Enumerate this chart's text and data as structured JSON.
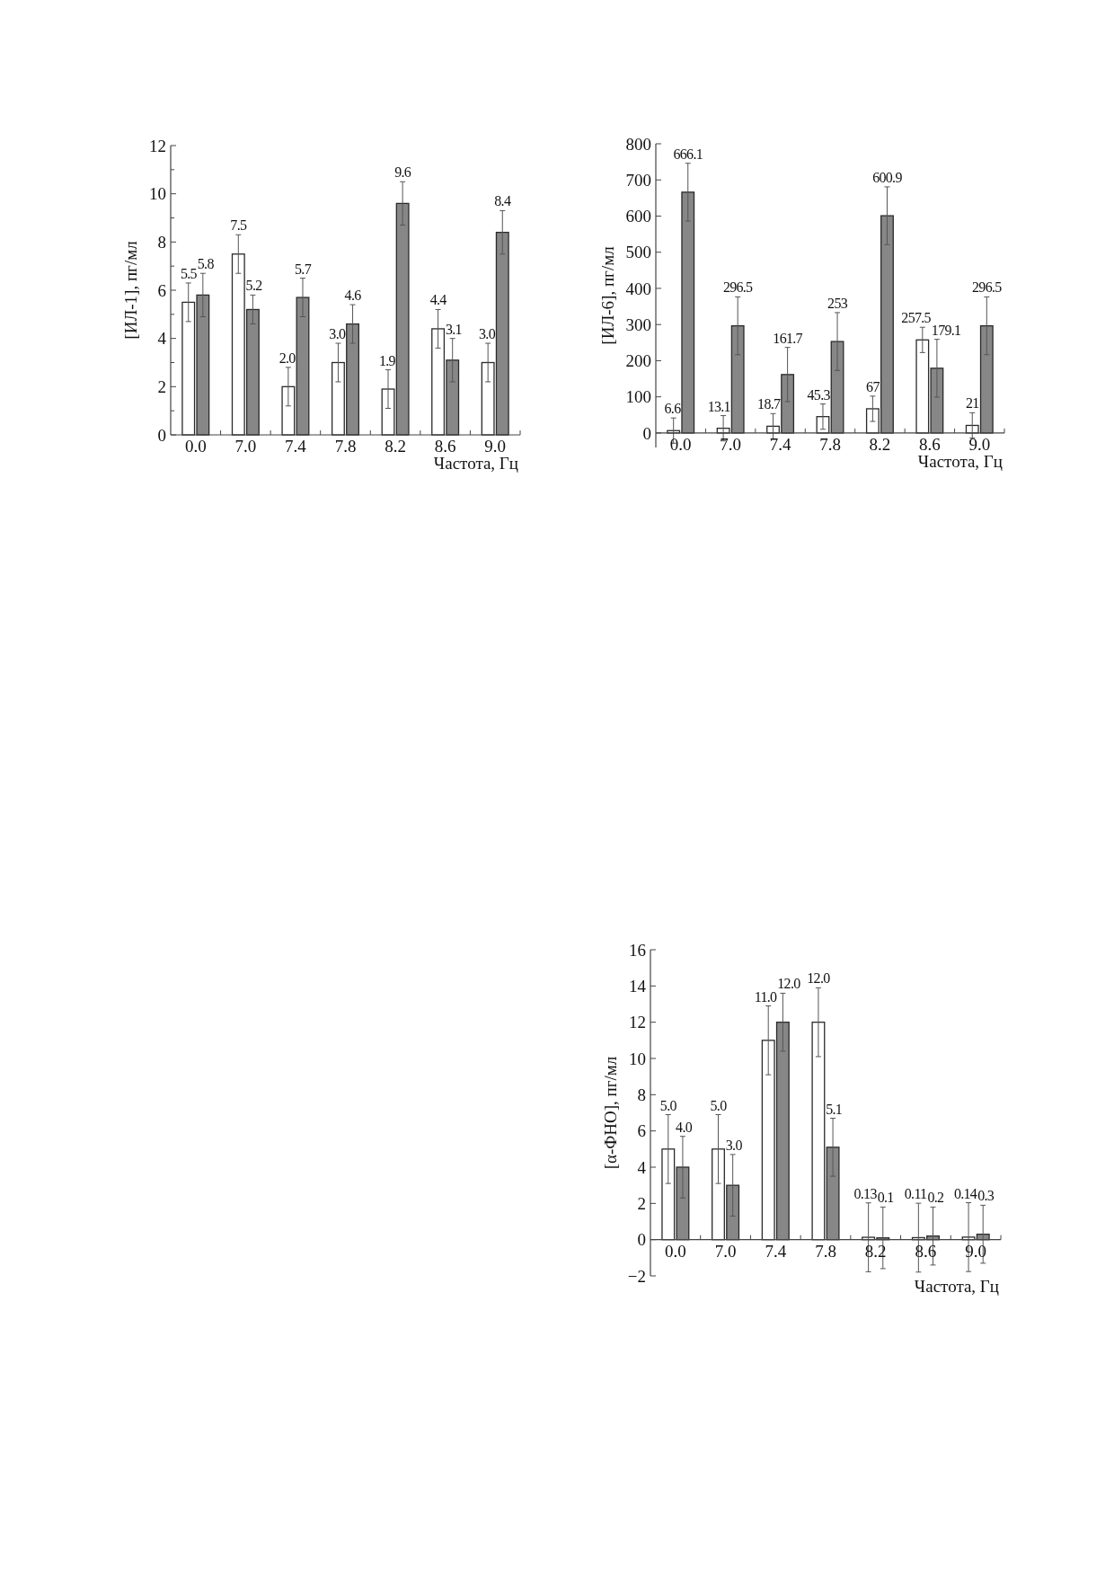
{
  "chart_data": [
    {
      "type": "bar",
      "ylabel": "[ИЛ-1], пг/мл",
      "xlabel": "Частота, Гц",
      "categories": [
        "0.0",
        "7.0",
        "7.4",
        "7.8",
        "8.2",
        "8.6",
        "9.0"
      ],
      "series": [
        {
          "color": "#ffffff",
          "values": [
            5.5,
            7.5,
            2.0,
            3.0,
            1.9,
            4.4,
            3.0
          ],
          "errors": [
            0.8,
            0.8,
            0.8,
            0.8,
            0.8,
            0.8,
            0.8
          ],
          "value_labels": [
            "5.5",
            "7.5",
            "2.0",
            "3.0",
            "1.9",
            "4.4",
            "3.0"
          ]
        },
        {
          "color": "#878787",
          "values": [
            5.8,
            5.2,
            5.7,
            4.6,
            9.6,
            3.1,
            8.4
          ],
          "errors": [
            0.9,
            0.6,
            0.8,
            0.8,
            0.9,
            0.9,
            0.9
          ],
          "value_labels": [
            "5.8",
            "5.2",
            "5.7",
            "4.6",
            "9.6",
            "3.1",
            "8.4"
          ]
        }
      ],
      "ylim": [
        0,
        12
      ],
      "yticks": [
        0,
        {
          "value": 1,
          "label": null
        },
        2,
        {
          "value": 3,
          "label": null
        },
        4,
        {
          "value": 5,
          "label": null
        },
        6,
        {
          "value": 7,
          "label": null
        },
        8,
        {
          "value": 9,
          "label": null
        },
        10,
        {
          "value": 11,
          "label": null
        },
        12
      ]
    },
    {
      "type": "bar",
      "ylabel": "[ИЛ-6], пг/мл",
      "xlabel": "Частота, Гц",
      "categories": [
        "0.0",
        "7.0",
        "7.4",
        "7.8",
        "8.2",
        "8.6",
        "9.0"
      ],
      "series": [
        {
          "color": "#ffffff",
          "values": [
            6.6,
            13.1,
            18.7,
            45.3,
            67,
            257.5,
            21
          ],
          "errors": [
            35,
            35,
            35,
            35,
            35,
            35,
            35
          ],
          "value_labels": [
            "6.6",
            "13.1",
            "18.7",
            "45.3",
            "67",
            "257.5",
            "21"
          ]
        },
        {
          "color": "#878787",
          "values": [
            666.1,
            296.5,
            161.7,
            253,
            600.9,
            179.1,
            296.5
          ],
          "errors": [
            80,
            80,
            75,
            80,
            80,
            80,
            80
          ],
          "value_labels": [
            "666.1",
            "296.5",
            "161.7",
            "253",
            "600.9",
            "179.1",
            "296.5"
          ]
        }
      ],
      "ylim": [
        -40,
        800
      ],
      "yticks": [
        0,
        100,
        200,
        300,
        400,
        500,
        600,
        700,
        800
      ]
    },
    {
      "type": "bar",
      "ylabel": "[α-ФНО], пг/мл",
      "xlabel": "Частота, Гц",
      "categories": [
        "0.0",
        "7.0",
        "7.4",
        "7.8",
        "8.2",
        "8.6",
        "9.0"
      ],
      "series": [
        {
          "color": "#ffffff",
          "values": [
            5.0,
            5.0,
            11.0,
            12.0,
            0.13,
            0.11,
            0.14
          ],
          "errors": [
            1.9,
            1.9,
            1.9,
            1.9,
            1.9,
            1.9,
            1.9
          ],
          "value_labels": [
            "5.0",
            "5.0",
            "11.0",
            "12.0",
            "0.13",
            "0.11",
            "0.14"
          ]
        },
        {
          "color": "#878787",
          "values": [
            4.0,
            3.0,
            12.0,
            5.1,
            0.1,
            0.2,
            0.3
          ],
          "errors": [
            1.7,
            1.7,
            1.6,
            1.6,
            1.7,
            1.6,
            1.6
          ],
          "value_labels": [
            "4.0",
            "3.0",
            "12.0",
            "5.1",
            "0.1",
            "0.2",
            "0.3"
          ]
        }
      ],
      "ylim": [
        -2,
        16
      ],
      "yticks": [
        {
          "value": -2,
          "label": "−2"
        },
        0,
        2,
        4,
        6,
        8,
        10,
        12,
        14,
        16
      ]
    }
  ]
}
